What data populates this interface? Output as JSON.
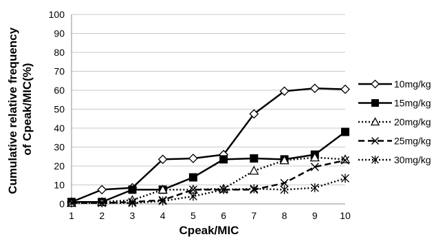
{
  "chart_data": {
    "type": "line",
    "xlabel": "Cpeak/MIC",
    "ylabel": "Cumulative relative frequency of Cpeak/MIC(%)",
    "ylabel_lines": [
      "Cumulative relative frequency",
      "of Cpeak/MIC(%)"
    ],
    "x": [
      1,
      2,
      3,
      4,
      5,
      6,
      7,
      8,
      9,
      10
    ],
    "xlim": [
      1,
      10
    ],
    "ylim": [
      0,
      100
    ],
    "yticks": [
      0,
      10,
      20,
      30,
      40,
      50,
      60,
      70,
      80,
      90,
      100
    ],
    "grid": "horizontal",
    "legend_position": "right",
    "series": [
      {
        "name": "10mg/kg",
        "marker": "diamond-open",
        "line": "solid",
        "color": "#000000",
        "values": [
          1,
          7.5,
          8.5,
          23.5,
          24,
          26,
          47.5,
          59.5,
          61,
          60.5
        ]
      },
      {
        "name": "15mg/kg",
        "marker": "square-filled",
        "line": "solid",
        "color": "#000000",
        "values": [
          1,
          1,
          7.5,
          7.5,
          14,
          23.5,
          24,
          23.5,
          26,
          38
        ]
      },
      {
        "name": "20mg/kg",
        "marker": "triangle-open",
        "line": "dotted",
        "color": "#000000",
        "values": [
          0.5,
          1,
          2,
          7.5,
          7.5,
          8,
          17.5,
          23,
          24.5,
          23.5
        ]
      },
      {
        "name": "25mg/kg",
        "marker": "x",
        "line": "dashed",
        "color": "#000000",
        "values": [
          0.5,
          0.5,
          1,
          2,
          7.5,
          7.5,
          7.5,
          11,
          19.5,
          23
        ]
      },
      {
        "name": "30mg/kg",
        "marker": "asterisk",
        "line": "dotted",
        "color": "#000000",
        "values": [
          0.5,
          0.5,
          0.5,
          1.5,
          4,
          7.5,
          8,
          7.5,
          8.5,
          13.5
        ]
      }
    ]
  }
}
